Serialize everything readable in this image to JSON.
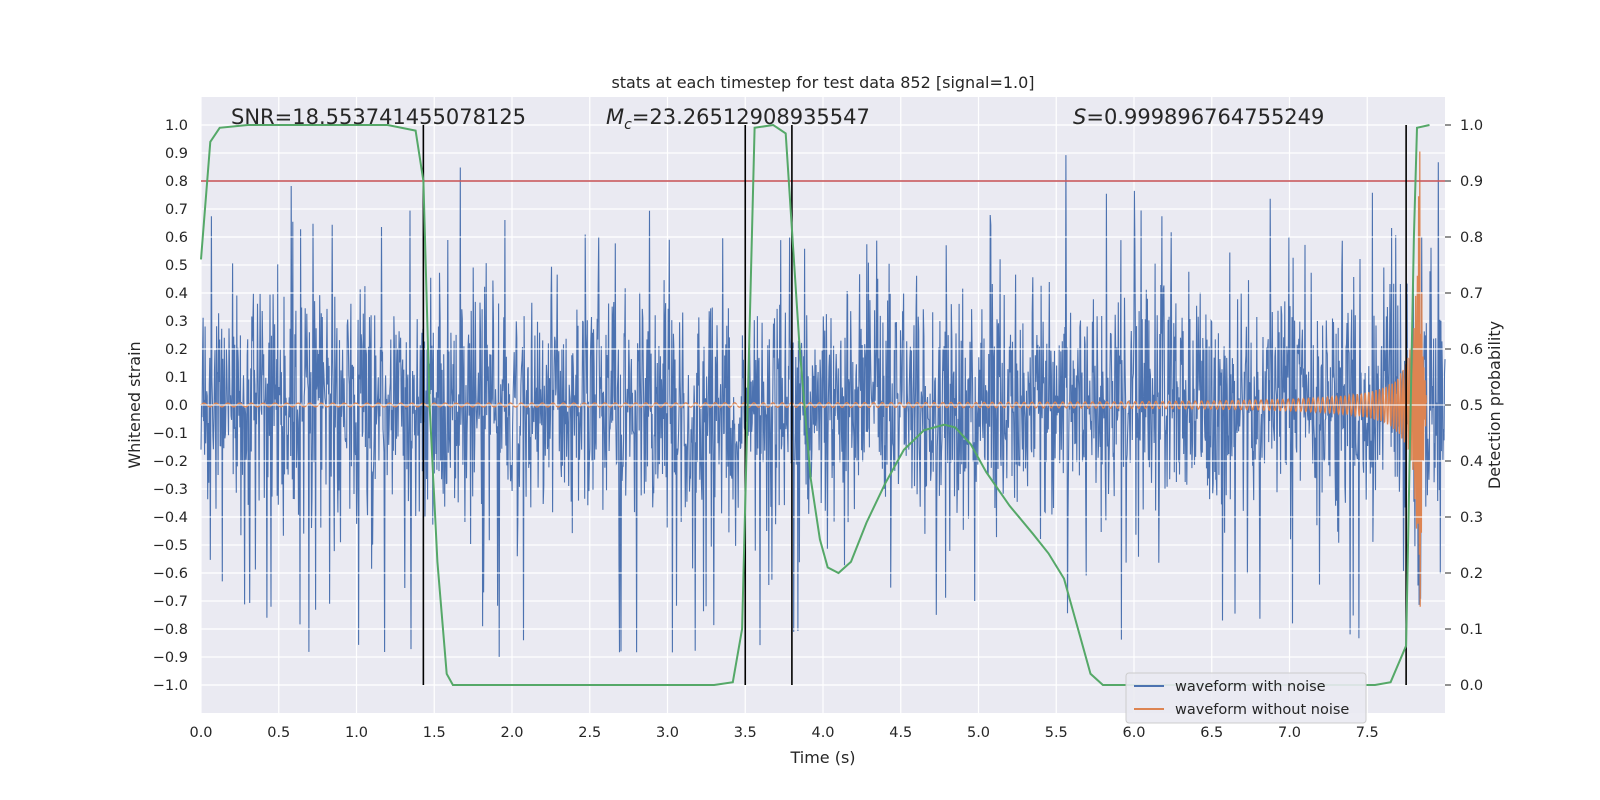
{
  "chart_data": {
    "type": "line",
    "title": "stats at each timestep for test data 852 [signal=1.0]",
    "xlabel": "Time (s)",
    "ylabel": "Whitened strain",
    "ylabel_right": "Detection probability",
    "xlim": [
      0.0,
      8.0
    ],
    "ylim": [
      -1.1,
      1.1
    ],
    "ylim_right": [
      -0.05,
      1.05
    ],
    "x_ticks": [
      "0.0",
      "0.5",
      "1.0",
      "1.5",
      "2.0",
      "2.5",
      "3.0",
      "3.5",
      "4.0",
      "4.5",
      "5.0",
      "5.5",
      "6.0",
      "6.5",
      "7.0",
      "7.5"
    ],
    "y_ticks": [
      "1.0",
      "0.9",
      "0.8",
      "0.7",
      "0.6",
      "0.5",
      "0.4",
      "0.3",
      "0.2",
      "0.1",
      "0.0",
      "−0.1",
      "−0.2",
      "−0.3",
      "−0.4",
      "−0.5",
      "−0.6",
      "−0.7",
      "−0.8",
      "−0.9",
      "−1.0"
    ],
    "y_ticks_right": [
      "1.0",
      "0.9",
      "0.8",
      "0.7",
      "0.6",
      "0.5",
      "0.4",
      "0.3",
      "0.2",
      "0.1",
      "0.0"
    ],
    "grid": true,
    "annotations": {
      "snr": "SNR=18.553741455078125",
      "mc_symbol": "M",
      "mc_sub": "c",
      "mc_value": "=23.26512908935547",
      "s_symbol": "S",
      "s_value": "=0.999896764755249"
    },
    "threshold": {
      "axis": "right",
      "value": 0.9,
      "color": "#c44e52"
    },
    "detection_markers_x": [
      1.43,
      3.5,
      3.8,
      7.75
    ],
    "detection_probability": {
      "name": "detection probability",
      "color": "#55a868",
      "x": [
        0.0,
        0.06,
        0.12,
        0.3,
        1.2,
        1.38,
        1.43,
        1.47,
        1.52,
        1.58,
        1.62,
        3.3,
        3.42,
        3.48,
        3.56,
        3.68,
        3.76,
        3.85,
        3.92,
        3.98,
        4.03,
        4.1,
        4.18,
        4.28,
        4.4,
        4.52,
        4.65,
        4.78,
        4.85,
        4.95,
        5.05,
        5.2,
        5.35,
        5.45,
        5.55,
        5.65,
        5.72,
        5.8,
        7.35,
        7.55,
        7.65,
        7.75,
        7.8,
        7.82,
        7.9
      ],
      "y": [
        0.76,
        0.97,
        0.995,
        1.0,
        1.0,
        0.99,
        0.9,
        0.5,
        0.22,
        0.02,
        0.0,
        0.0,
        0.005,
        0.1,
        0.995,
        1.0,
        0.985,
        0.6,
        0.37,
        0.26,
        0.21,
        0.2,
        0.22,
        0.29,
        0.36,
        0.42,
        0.455,
        0.465,
        0.46,
        0.43,
        0.38,
        0.32,
        0.27,
        0.235,
        0.19,
        0.09,
        0.02,
        0.0,
        0.0,
        0.0,
        0.005,
        0.07,
        0.8,
        0.995,
        1.0
      ]
    },
    "series": [
      {
        "name": "waveform with noise",
        "color": "#4c72b0",
        "kind": "noise",
        "x_range": [
          0.0,
          8.0
        ],
        "typical_amplitude": 0.35,
        "max": 0.97,
        "min": -1.0
      },
      {
        "name": "waveform without noise",
        "color": "#dd8452",
        "kind": "chirp",
        "x_range": [
          0.0,
          7.88
        ],
        "merger_time": 7.84,
        "peak": 0.91,
        "trough": -0.93,
        "early_amplitude": 0.005
      }
    ],
    "legend": {
      "position": "lower-right",
      "entries": [
        "waveform with noise",
        "waveform without noise"
      ]
    }
  }
}
